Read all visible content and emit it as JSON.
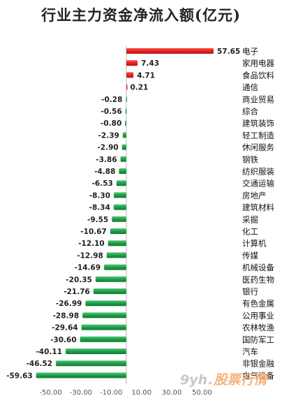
{
  "chart_data": {
    "type": "bar",
    "orientation": "horizontal",
    "title": "行业主力资金净流入额(亿元)",
    "xlim": [
      -60,
      60
    ],
    "x_ticks": [
      "-50.00",
      "-30.00",
      "-10.00",
      "10.00",
      "30.00",
      "50.00"
    ],
    "x_tick_values": [
      -50,
      -30,
      -10,
      10,
      30,
      50
    ],
    "grid": false,
    "positive_color": "#e52326",
    "negative_color": "#1f9e48",
    "categories": [
      "电子",
      "家用电器",
      "食品饮料",
      "通信",
      "商业贸易",
      "综合",
      "建筑装饰",
      "轻工制造",
      "休闲服务",
      "钢铁",
      "纺织服装",
      "交通运输",
      "房地产",
      "建筑材料",
      "采掘",
      "化工",
      "计算机",
      "传媒",
      "机械设备",
      "医药生物",
      "银行",
      "有色金属",
      "公用事业",
      "农林牧渔",
      "国防军工",
      "汽车",
      "非银金融",
      "电气设备"
    ],
    "values": [
      57.65,
      7.43,
      4.71,
      0.21,
      -0.28,
      -0.56,
      -0.8,
      -2.39,
      -2.9,
      -3.86,
      -4.88,
      -6.53,
      -8.3,
      -8.34,
      -9.55,
      -10.67,
      -12.1,
      -12.98,
      -14.69,
      -20.35,
      -21.76,
      -26.99,
      -28.98,
      -29.64,
      -30.6,
      -40.11,
      -46.52,
      -59.63
    ],
    "value_labels": [
      "57.65",
      "7.43",
      "4.71",
      "0.21",
      "-0.28",
      "-0.56",
      "-0.80",
      "-2.39",
      "-2.90",
      "-3.86",
      "-4.88",
      "-6.53",
      "-8.30",
      "-8.34",
      "-9.55",
      "-10.67",
      "-12.10",
      "-12.98",
      "-14.69",
      "-20.35",
      "-21.76",
      "-26.99",
      "-28.98",
      "-29.64",
      "-30.60",
      "-40.11",
      "-46.52",
      "-59.63"
    ]
  },
  "watermark": {
    "logo": "9yh",
    "dot": ".",
    "brand": "股票行情"
  }
}
